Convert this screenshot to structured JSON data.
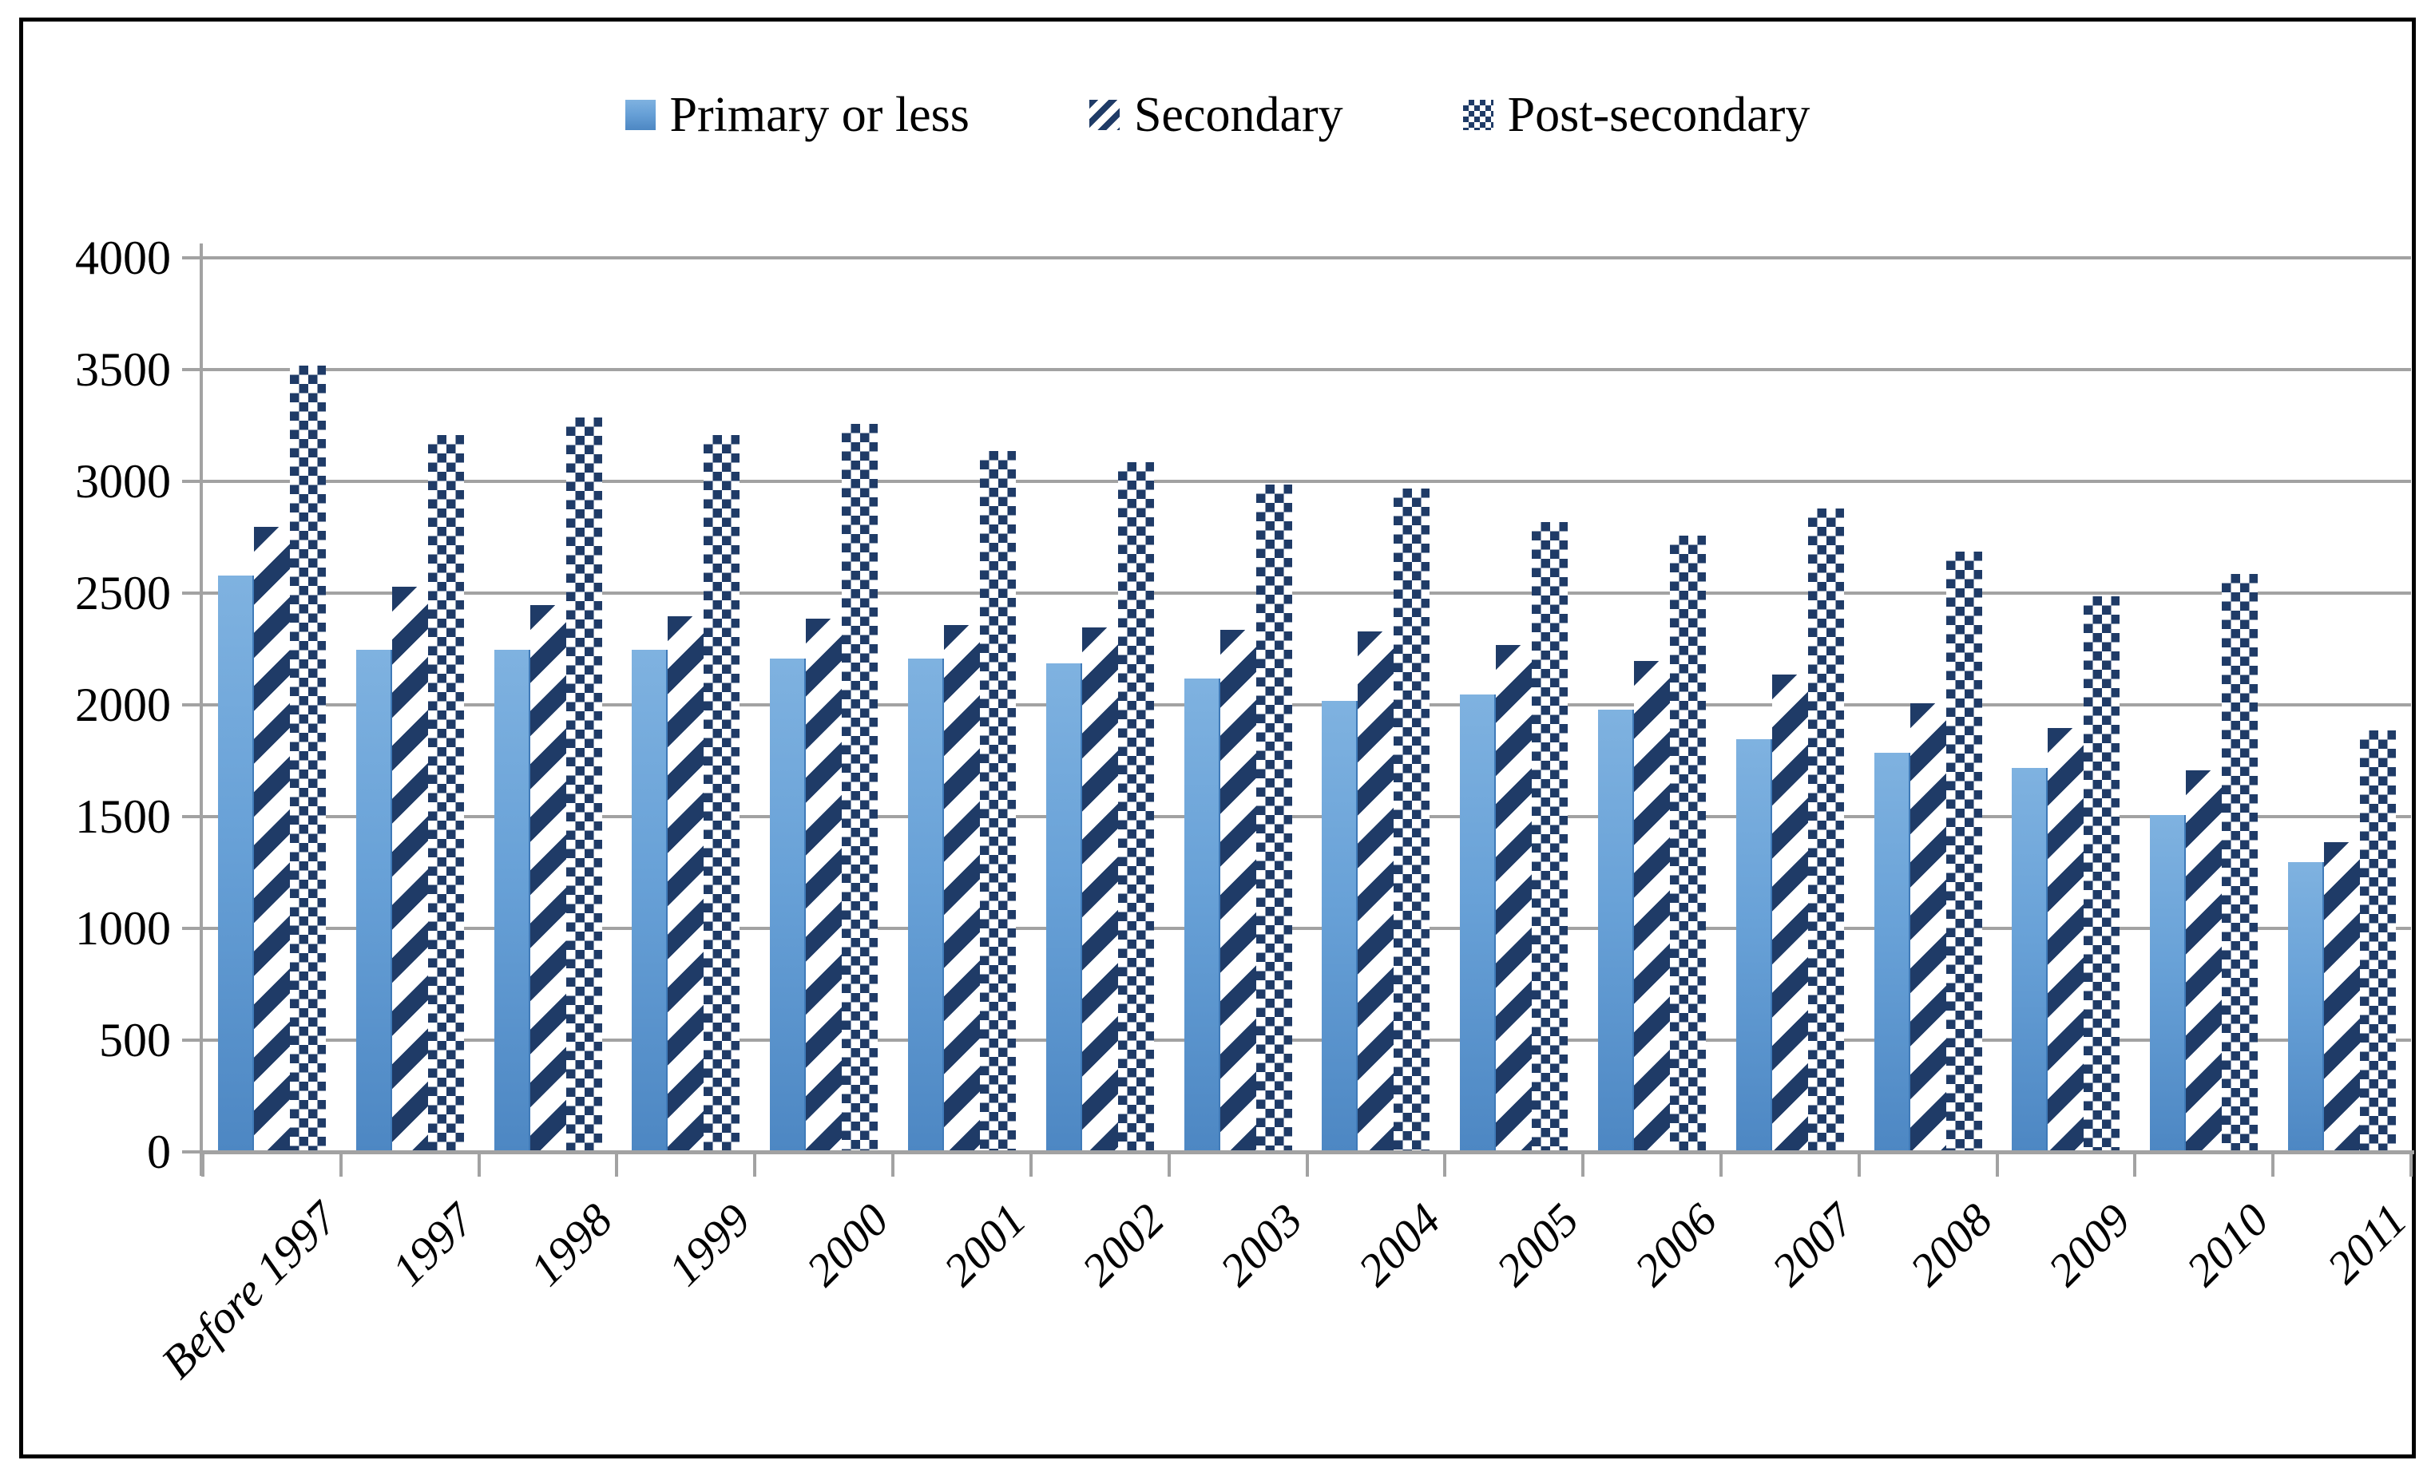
{
  "chart_data": {
    "type": "bar",
    "title": "",
    "xlabel": "",
    "ylabel": "",
    "categories": [
      "Before 1997",
      "1997",
      "1998",
      "1999",
      "2000",
      "2001",
      "2002",
      "2003",
      "2004",
      "2005",
      "2006",
      "2007",
      "2008",
      "2009",
      "2010",
      "2011"
    ],
    "series": [
      {
        "name": "Primary or less",
        "values": [
          2570,
          2240,
          2240,
          2240,
          2200,
          2200,
          2180,
          2110,
          2010,
          2040,
          1970,
          1840,
          1780,
          1710,
          1500,
          1290
        ]
      },
      {
        "name": "Secondary",
        "values": [
          2790,
          2520,
          2440,
          2390,
          2380,
          2350,
          2340,
          2330,
          2320,
          2260,
          2190,
          2130,
          2000,
          1890,
          1700,
          1380
        ]
      },
      {
        "name": "Post-secondary",
        "values": [
          3510,
          3200,
          3280,
          3200,
          3250,
          3130,
          3080,
          2980,
          2960,
          2810,
          2750,
          2870,
          2680,
          2480,
          2580,
          1880
        ]
      }
    ],
    "ylim": [
      0,
      4000
    ],
    "ytick_interval": 500,
    "ytick_labels": [
      "0",
      "500",
      "1000",
      "1500",
      "2000",
      "2500",
      "3000",
      "3500",
      "4000"
    ],
    "grid": true,
    "legend_position": "top-center",
    "legend_entries": [
      "Primary or less",
      "Secondary",
      "Post-secondary"
    ],
    "colors": {
      "primary_bar_top": "#7fb2e0",
      "primary_bar_bottom": "#4d87c3",
      "pattern_navy": "#1f3b67",
      "gridline_gray": "#a2a2a2",
      "chart_border": "#000000",
      "background": "#ffffff"
    }
  }
}
